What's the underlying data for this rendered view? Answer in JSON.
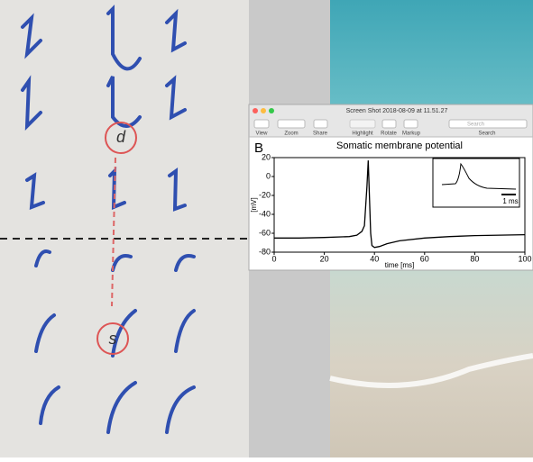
{
  "whiteboard": {
    "labels": [
      "d",
      "s"
    ]
  },
  "window": {
    "title": "Screen Shot 2018-08-09 at 11.51.27",
    "toolbar": [
      "View",
      "Zoom",
      "Share",
      "Highlight",
      "Rotate",
      "Markup",
      "Search"
    ],
    "search_placeholder": "Search"
  },
  "chart_data": {
    "type": "line",
    "panel_label": "B",
    "title": "Somatic membrane potential",
    "x_label": "time [ms]",
    "y_label": "[mV]",
    "inset_scale_label": "1 ms",
    "x": [
      0,
      10,
      20,
      30,
      33,
      35,
      36,
      37,
      37.5,
      38,
      38.5,
      39,
      40,
      42,
      45,
      50,
      60,
      70,
      80,
      90,
      100
    ],
    "series": [
      {
        "name": "membrane potential",
        "color": "#000000",
        "values": [
          -65,
          -65,
          -64.5,
          -63.5,
          -62,
          -58,
          -52,
          -10,
          17,
          -20,
          -60,
          -73,
          -75,
          -74,
          -71,
          -68,
          -65,
          -63.5,
          -62.5,
          -62,
          -61.5
        ]
      }
    ],
    "xlim": [
      0,
      100
    ],
    "xticks": [
      0,
      20,
      40,
      60,
      80,
      100
    ],
    "ylim": [
      -80,
      20
    ],
    "yticks": [
      -80,
      -60,
      -40,
      -20,
      0,
      20
    ]
  }
}
